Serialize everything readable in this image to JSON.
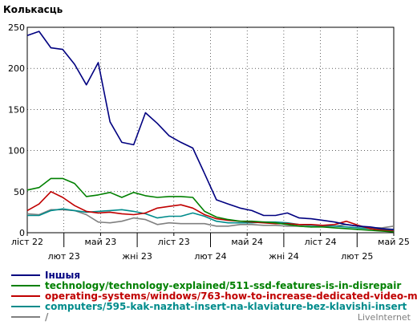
{
  "chart_data": {
    "type": "line",
    "ylabel": "Колькасць",
    "ylim": [
      0,
      250
    ],
    "yticks": [
      0,
      50,
      100,
      150,
      200,
      250
    ],
    "x_tick_labels_row1": [
      "ліст 22",
      "май 23",
      "ліст 23",
      "май 24",
      "ліст 24",
      "май 25"
    ],
    "x_tick_labels_row2": [
      "лют 23",
      "жні 23",
      "лют 24",
      "жні 24",
      "лют 25"
    ],
    "grid": true,
    "legend_placement": "bottom",
    "credit": "LiveInternet",
    "series": [
      {
        "name": "Іншыя",
        "color": "#000080",
        "values": [
          240,
          245,
          225,
          223,
          205,
          180,
          207,
          135,
          110,
          107,
          146,
          133,
          118,
          110,
          103,
          72,
          40,
          35,
          30,
          27,
          21,
          21,
          24,
          18,
          17,
          15,
          13,
          10,
          8,
          7,
          5,
          4
        ]
      },
      {
        "name": "technology/technology-explained/511-ssd-features-is-in-disrepair",
        "color": "#008000",
        "values": [
          52,
          55,
          66,
          66,
          60,
          44,
          46,
          49,
          43,
          49,
          45,
          43,
          44,
          44,
          43,
          26,
          19,
          16,
          14,
          14,
          13,
          12,
          10,
          8,
          7,
          7,
          6,
          5,
          4,
          3,
          2,
          1
        ]
      },
      {
        "name": "operating-systems/windows/763-how-to-increase-dedicated-video-memo",
        "color": "#c00000",
        "values": [
          27,
          35,
          50,
          43,
          33,
          26,
          24,
          25,
          23,
          22,
          24,
          30,
          32,
          34,
          30,
          22,
          17,
          15,
          14,
          13,
          12,
          11,
          11,
          10,
          10,
          9,
          10,
          14,
          9,
          5,
          3,
          2
        ]
      },
      {
        "name": "computers/595-kak-nazhat-insert-na-klaviature-bez-klavishi-insert",
        "color": "#008b8b",
        "values": [
          21,
          21,
          27,
          29,
          27,
          25,
          26,
          27,
          28,
          26,
          23,
          18,
          20,
          20,
          24,
          20,
          14,
          12,
          12,
          12,
          13,
          13,
          12,
          10,
          9,
          9,
          8,
          7,
          6,
          5,
          4,
          3
        ]
      },
      {
        "name": "/",
        "color": "#808080",
        "values": [
          23,
          22,
          28,
          28,
          27,
          22,
          13,
          12,
          14,
          18,
          16,
          10,
          12,
          11,
          11,
          11,
          8,
          8,
          10,
          10,
          9,
          9,
          8,
          8,
          7,
          8,
          8,
          10,
          8,
          6,
          6,
          8
        ]
      }
    ]
  }
}
